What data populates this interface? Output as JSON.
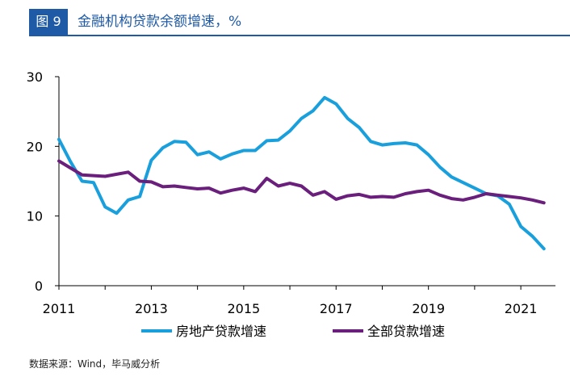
{
  "figure": {
    "number_label": "图 9",
    "title": "金融机构贷款余额增速，%"
  },
  "source": "数据来源：Wind，毕马威分析",
  "colors": {
    "accent": "#1f5aa6",
    "series_property": "#19a0dc",
    "series_total": "#6b1f7c"
  },
  "chart_data": {
    "type": "line",
    "title": "金融机构贷款余额增速，%",
    "xlabel": "",
    "ylabel": "",
    "xlim": [
      2011.0,
      2021.75
    ],
    "ylim": [
      0,
      30
    ],
    "yticks": [
      0,
      10,
      20,
      30
    ],
    "xticks": [
      2011,
      2013,
      2015,
      2017,
      2019,
      2021
    ],
    "xtick_labels": [
      "2011",
      "2013",
      "2015",
      "2017",
      "2019",
      "2021"
    ],
    "grid": false,
    "legend": "bottom",
    "series": [
      {
        "name": "房地产贷款增速",
        "color": "#19a0dc",
        "x": [
          2011.0,
          2011.25,
          2011.5,
          2011.75,
          2012.0,
          2012.25,
          2012.5,
          2012.75,
          2013.0,
          2013.25,
          2013.5,
          2013.75,
          2014.0,
          2014.25,
          2014.5,
          2014.75,
          2015.0,
          2015.25,
          2015.5,
          2015.75,
          2016.0,
          2016.25,
          2016.5,
          2016.75,
          2017.0,
          2017.25,
          2017.5,
          2017.75,
          2018.0,
          2018.25,
          2018.5,
          2018.75,
          2019.0,
          2019.25,
          2019.5,
          2019.75,
          2020.0,
          2020.25,
          2020.5,
          2020.75,
          2021.0,
          2021.25,
          2021.5
        ],
        "values": [
          21.0,
          17.8,
          15.0,
          14.8,
          11.3,
          10.4,
          12.3,
          12.8,
          18.0,
          19.8,
          20.7,
          20.6,
          18.8,
          19.2,
          18.2,
          18.9,
          19.4,
          19.4,
          20.8,
          20.9,
          22.2,
          24.0,
          25.1,
          27.0,
          26.1,
          24.0,
          22.7,
          20.7,
          20.2,
          20.4,
          20.5,
          20.2,
          18.8,
          17.0,
          15.6,
          14.8,
          14.0,
          13.2,
          12.9,
          11.7,
          8.5,
          7.1,
          5.3
        ]
      },
      {
        "name": "全部贷款增速",
        "color": "#6b1f7c",
        "x": [
          2011.0,
          2011.25,
          2011.5,
          2011.75,
          2012.0,
          2012.25,
          2012.5,
          2012.75,
          2013.0,
          2013.25,
          2013.5,
          2013.75,
          2014.0,
          2014.25,
          2014.5,
          2014.75,
          2015.0,
          2015.25,
          2015.5,
          2015.75,
          2016.0,
          2016.25,
          2016.5,
          2016.75,
          2017.0,
          2017.25,
          2017.5,
          2017.75,
          2018.0,
          2018.25,
          2018.5,
          2018.75,
          2019.0,
          2019.25,
          2019.5,
          2019.75,
          2020.0,
          2020.25,
          2020.5,
          2020.75,
          2021.0,
          2021.25,
          2021.5
        ],
        "values": [
          17.9,
          16.9,
          15.9,
          15.8,
          15.7,
          16.0,
          16.3,
          15.0,
          14.9,
          14.2,
          14.3,
          14.1,
          13.9,
          14.0,
          13.3,
          13.7,
          14.0,
          13.5,
          15.4,
          14.3,
          14.7,
          14.3,
          13.0,
          13.5,
          12.4,
          12.9,
          13.1,
          12.7,
          12.8,
          12.7,
          13.2,
          13.5,
          13.7,
          13.0,
          12.5,
          12.3,
          12.7,
          13.2,
          13.0,
          12.8,
          12.6,
          12.3,
          11.9
        ]
      }
    ]
  }
}
